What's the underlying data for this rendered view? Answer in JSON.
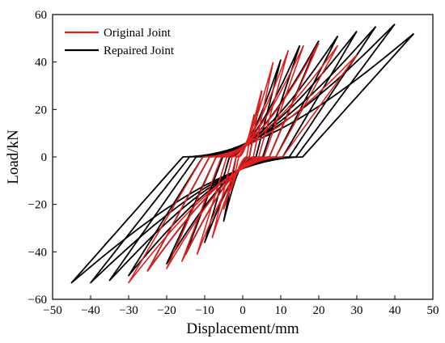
{
  "chart_data": {
    "type": "line",
    "title": "",
    "xlabel": "Displacement/mm",
    "ylabel": "Load/kN",
    "xlim": [
      -50,
      50
    ],
    "ylim": [
      -60,
      60
    ],
    "xticks": [
      -50,
      -40,
      -30,
      -20,
      -10,
      0,
      10,
      20,
      30,
      40,
      50
    ],
    "yticks": [
      -60,
      -40,
      -20,
      0,
      20,
      40,
      60
    ],
    "grid": false,
    "legend_position": "top-left",
    "draw_order": [
      "Repaired Joint",
      "Original Joint"
    ],
    "series": [
      {
        "name": "Original Joint",
        "color": "#e02020",
        "cycles": [
          {
            "xp": 3,
            "yp": 18,
            "xn": -3,
            "yn": -14
          },
          {
            "xp": 5,
            "yp": 28,
            "xn": -5,
            "yn": -22
          },
          {
            "xp": 8,
            "yp": 40,
            "xn": -8,
            "yn": -34
          },
          {
            "xp": 12,
            "yp": 45,
            "xn": -12,
            "yn": -41
          },
          {
            "xp": 16,
            "yp": 47,
            "xn": -16,
            "yn": -44
          },
          {
            "xp": 20,
            "yp": 48,
            "xn": -20,
            "yn": -47
          },
          {
            "xp": 25,
            "yp": 47,
            "xn": -25,
            "yn": -48
          },
          {
            "xp": 30,
            "yp": 43,
            "xn": -30,
            "yn": -53
          }
        ]
      },
      {
        "name": "Repaired Joint",
        "color": "#000000",
        "cycles": [
          {
            "xp": 5,
            "yp": 28,
            "xn": -5,
            "yn": -27
          },
          {
            "xp": 10,
            "yp": 41,
            "xn": -10,
            "yn": -36
          },
          {
            "xp": 15,
            "yp": 47,
            "xn": -15,
            "yn": -41
          },
          {
            "xp": 20,
            "yp": 49,
            "xn": -20,
            "yn": -45
          },
          {
            "xp": 25,
            "yp": 51,
            "xn": -25,
            "yn": -48
          },
          {
            "xp": 30,
            "yp": 53,
            "xn": -30,
            "yn": -50
          },
          {
            "xp": 35,
            "yp": 55,
            "xn": -35,
            "yn": -52
          },
          {
            "xp": 40,
            "yp": 56,
            "xn": -40,
            "yn": -53
          },
          {
            "xp": 45,
            "yp": 52,
            "xn": -45,
            "yn": -53
          }
        ]
      }
    ]
  }
}
